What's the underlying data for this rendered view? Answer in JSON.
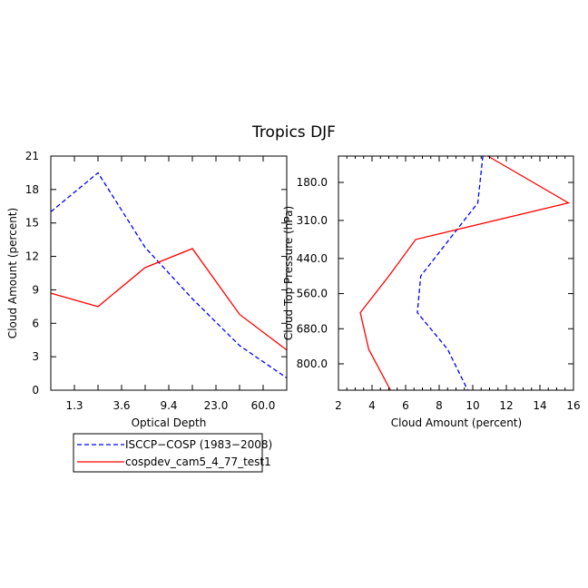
{
  "figure": {
    "title": "Tropics DJF",
    "colors": {
      "observed": "#0000ff",
      "model": "#ff0000",
      "axis": "#000000"
    }
  },
  "legend": {
    "placement": "below-left-panel",
    "entries": [
      {
        "label": "ISCCP−COSP (1983−2008)",
        "color": "#0000ff",
        "style": "dashed"
      },
      {
        "label": "cospdev_cam5_4_77_test1",
        "color": "#ff0000",
        "style": "solid"
      }
    ]
  },
  "chart_data": [
    {
      "type": "line",
      "xlabel": "Optical Depth",
      "ylabel": "Cloud Amount (percent)",
      "x_categories": [
        "",
        "1.3",
        "",
        "3.6",
        "",
        "9.4",
        "",
        "23.0",
        "",
        "60.0",
        ""
      ],
      "ylim": [
        0,
        21
      ],
      "yticks": [
        "0",
        "3",
        "6",
        "9",
        "12",
        "15",
        "18",
        "21"
      ],
      "series": [
        {
          "name": "ISCCP−COSP (1983−2008)",
          "color": "#0000ff",
          "style": "dashed",
          "values": [
            16.0,
            19.5,
            12.8,
            8.2,
            4.0,
            1.1
          ]
        },
        {
          "name": "cospdev_cam5_4_77_test1",
          "color": "#ff0000",
          "style": "solid",
          "values": [
            8.7,
            7.5,
            11.0,
            12.7,
            6.8,
            3.6
          ]
        }
      ]
    },
    {
      "type": "line",
      "orientation": "vertical-profile",
      "xlabel": "Cloud Amount (percent)",
      "ylabel": "Cloud Top Pressure (hPa)",
      "xlim": [
        2,
        16
      ],
      "xticks": [
        "2",
        "4",
        "6",
        "8",
        "10",
        "12",
        "14",
        "16"
      ],
      "y_range_hPa": [
        90,
        890
      ],
      "yticks": [
        "180.0",
        "310.0",
        "440.0",
        "560.0",
        "680.0",
        "800.0"
      ],
      "y_reversed": true,
      "series": [
        {
          "name": "ISCCP−COSP (1983−2008)",
          "color": "#0000ff",
          "style": "dashed",
          "points": [
            [
              10.6,
              90
            ],
            [
              10.3,
              250
            ],
            [
              8.6,
              375
            ],
            [
              6.9,
              500
            ],
            [
              6.7,
              625
            ],
            [
              8.5,
              750
            ],
            [
              9.7,
              890
            ]
          ]
        },
        {
          "name": "cospdev_cam5_4_77_test1",
          "color": "#ff0000",
          "style": "solid",
          "points": [
            [
              10.9,
              90
            ],
            [
              15.7,
              250
            ],
            [
              6.6,
              375
            ],
            [
              5.0,
              500
            ],
            [
              3.3,
              625
            ],
            [
              3.8,
              750
            ],
            [
              5.1,
              890
            ]
          ]
        }
      ]
    }
  ]
}
